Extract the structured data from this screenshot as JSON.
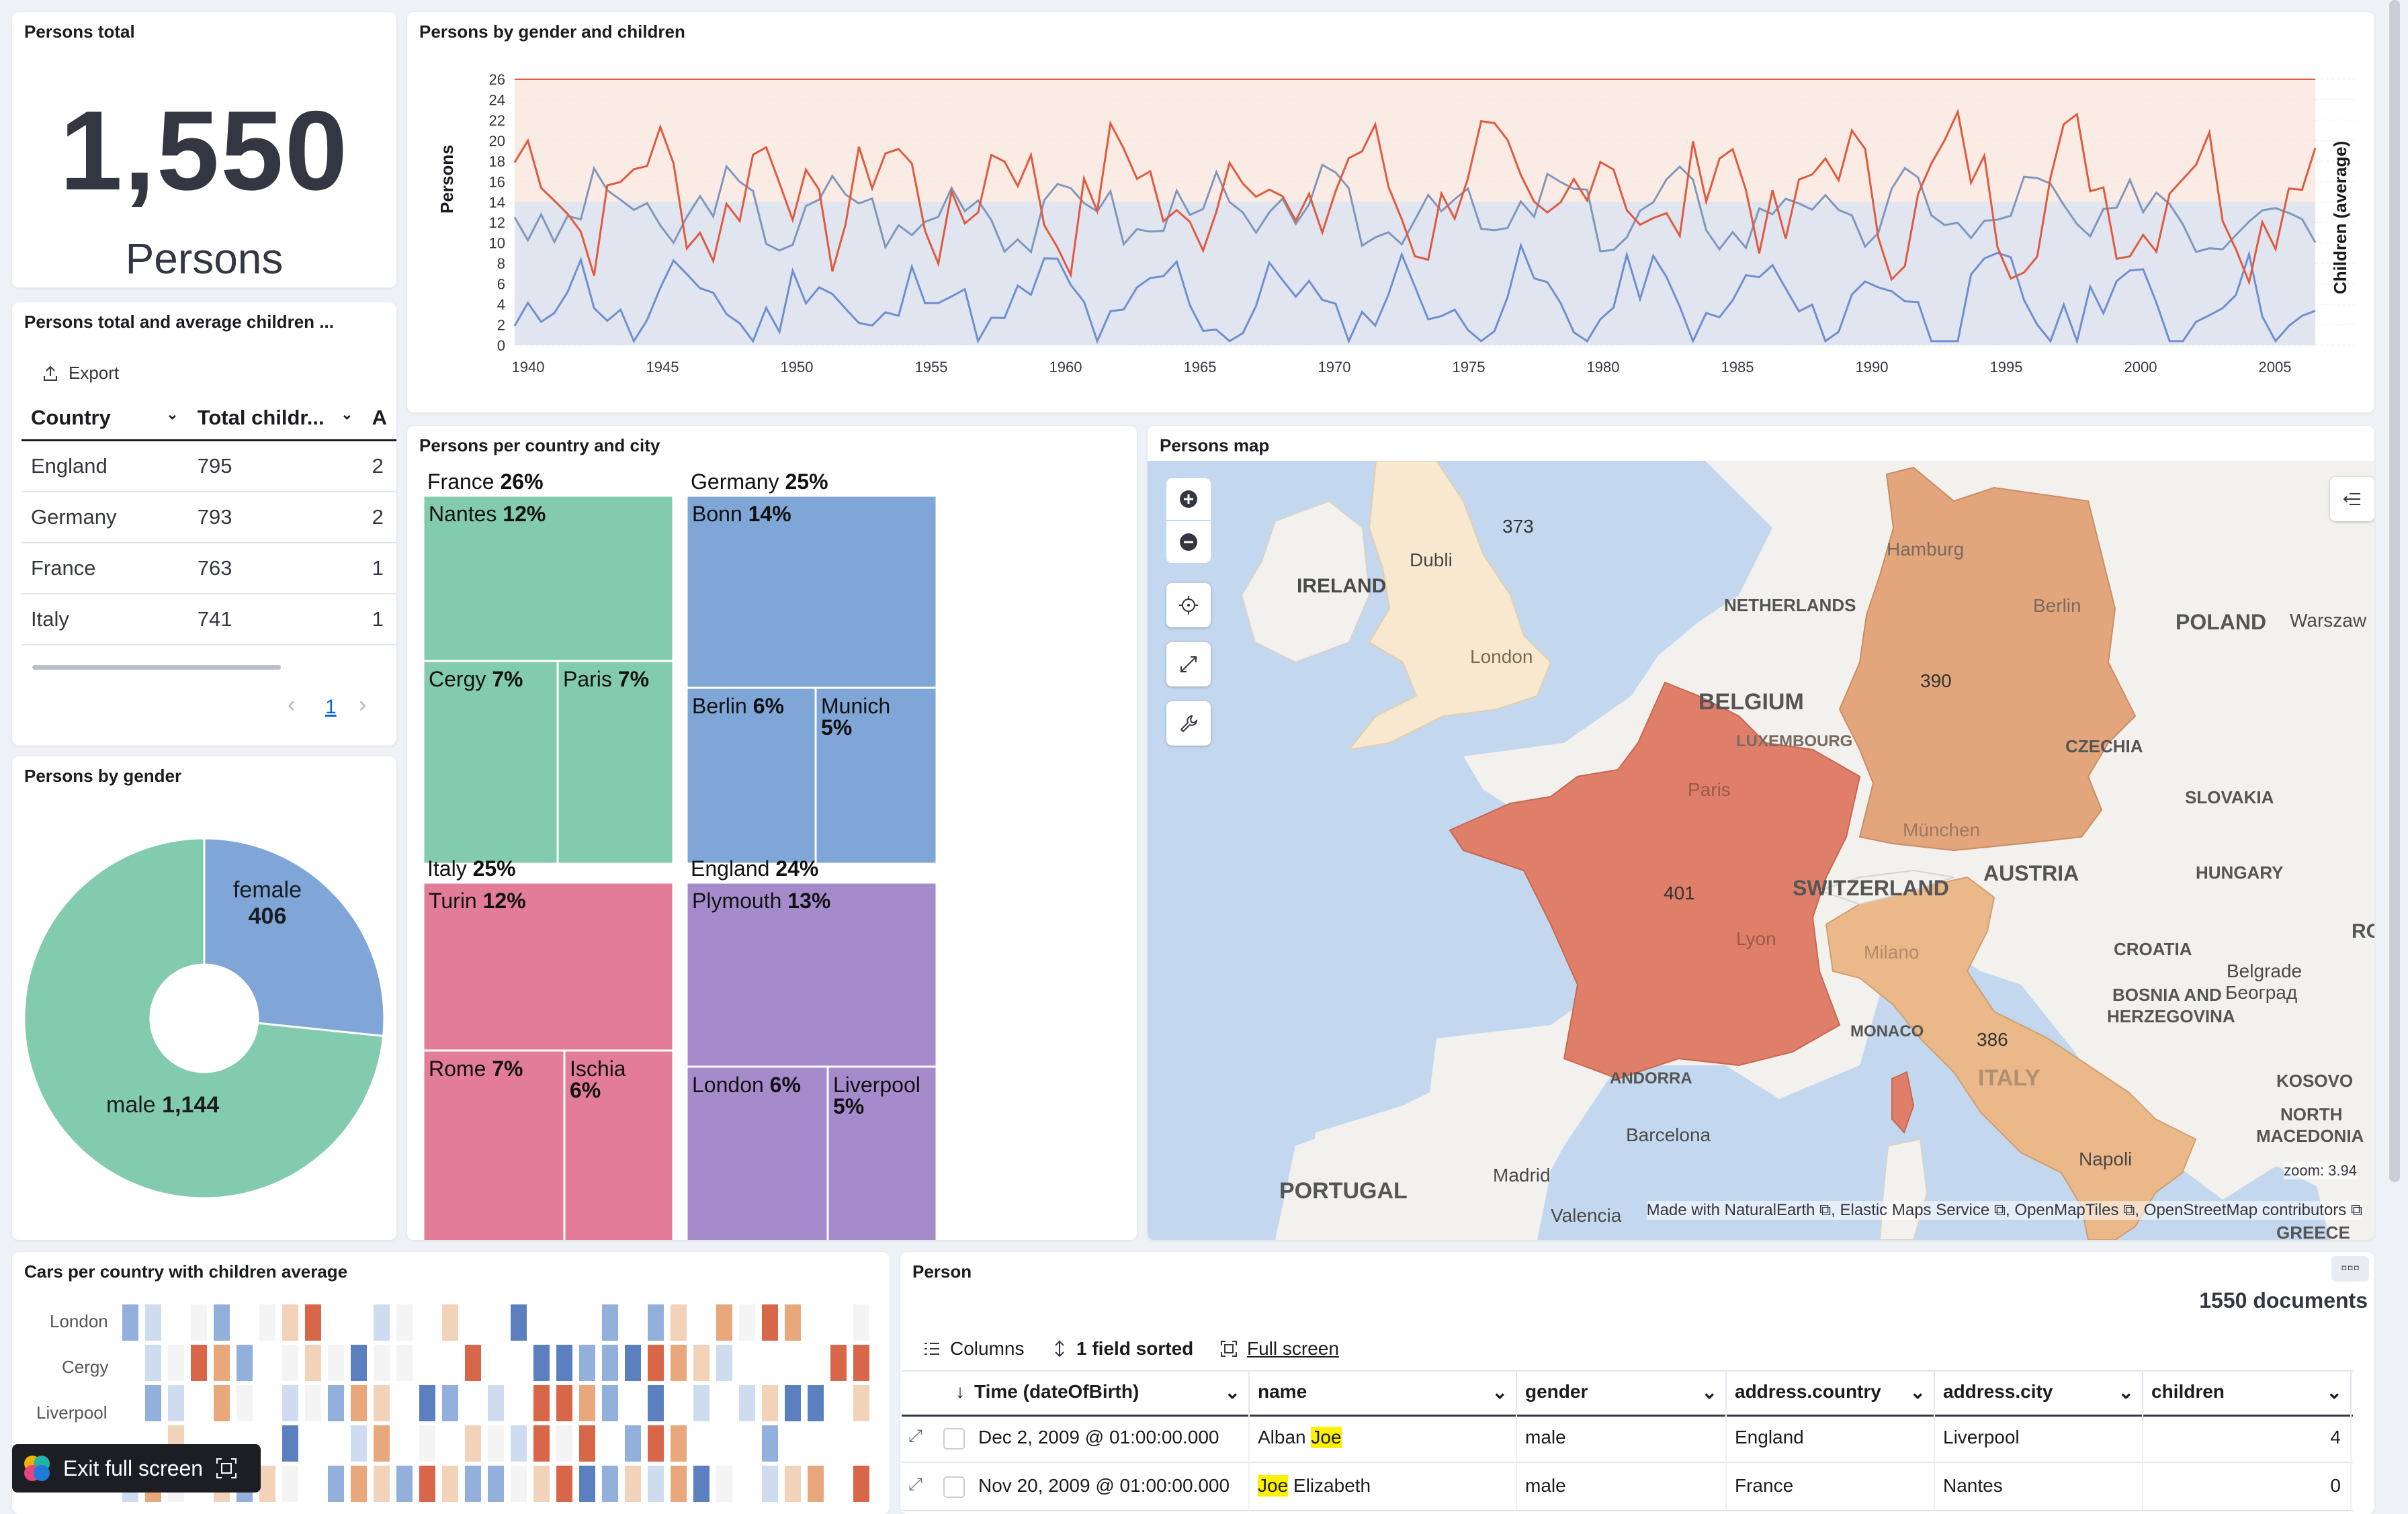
{
  "colors": {
    "female": "#6f8fd0",
    "male": "#e05a3e",
    "green": "#83cbae",
    "blue": "#7fa6d6",
    "pink": "#e27c97",
    "purple": "#a68bcc",
    "france_map": "#e07f69",
    "germany_map": "#e3a67c",
    "italy_map": "#ebb889",
    "england_map": "#f7e8cf",
    "water": "#c3d7ef",
    "accent": "#0b64dd"
  },
  "metric": {
    "title": "Persons total",
    "value": "1,550",
    "label": "Persons"
  },
  "table_panel": {
    "title": "Persons total and average children ...",
    "export_label": "Export",
    "columns": [
      "Country",
      "Total childr...",
      "A"
    ],
    "rows": [
      [
        "England",
        "795",
        "2"
      ],
      [
        "Germany",
        "793",
        "2"
      ],
      [
        "France",
        "763",
        "1"
      ],
      [
        "Italy",
        "741",
        "1"
      ]
    ],
    "page": "1"
  },
  "gender_pie": {
    "title": "Persons by gender",
    "labels": {
      "female_name": "female",
      "female_value": "406",
      "male_name": "male",
      "male_value": "1,144"
    }
  },
  "line_chart": {
    "title": "Persons by gender and children",
    "y_left_label": "Persons",
    "y_right_label": "Children (average)"
  },
  "treemap": {
    "title": "Persons per country and city",
    "groups": [
      {
        "name": "France",
        "pct": "26%",
        "color": "green",
        "cities": [
          {
            "name": "Nantes",
            "pct": "12%"
          },
          {
            "name": "Cergy",
            "pct": "7%"
          },
          {
            "name": "Paris",
            "pct": "7%"
          }
        ]
      },
      {
        "name": "Germany",
        "pct": "25%",
        "color": "blue",
        "cities": [
          {
            "name": "Bonn",
            "pct": "14%"
          },
          {
            "name": "Berlin",
            "pct": "6%"
          },
          {
            "name": "Munich",
            "pct": "5%"
          }
        ]
      },
      {
        "name": "Italy",
        "pct": "25%",
        "color": "pink",
        "cities": [
          {
            "name": "Turin",
            "pct": "12%"
          },
          {
            "name": "Rome",
            "pct": "7%"
          },
          {
            "name": "Ischia",
            "pct": "6%"
          }
        ]
      },
      {
        "name": "England",
        "pct": "24%",
        "color": "purple",
        "cities": [
          {
            "name": "Plymouth",
            "pct": "13%"
          },
          {
            "name": "London",
            "pct": "6%"
          },
          {
            "name": "Liverpool",
            "pct": "5%"
          }
        ]
      }
    ]
  },
  "map": {
    "title": "Persons map",
    "labels": {
      "ireland": "IRELAND",
      "dublin": "Dubli",
      "netherlands": "NETHERLANDS",
      "belgium": "BELGIUM",
      "luxembourg": "LUXEMBOURG",
      "berlin": "Berlin",
      "hamburg": "Hamburg",
      "poland": "POLAND",
      "warsaw": "Warszaw",
      "czechia": "CZECHIA",
      "slovakia": "SLOVAKIA",
      "hungary": "HUNGARY",
      "austria": "AUSTRIA",
      "switzerland": "SWITZERLAND",
      "muenchen": "München",
      "paris": "Paris",
      "lyon": "Lyon",
      "milano": "Milano",
      "italy": "ITALY",
      "croatia": "CROATIA",
      "bosnia1": "BOSNIA AND",
      "bosnia2": "HERZEGOVINA",
      "belgrade": "Belgrade",
      "beograd": "Београд",
      "kosovo": "KOSOVO",
      "nmac1": "NORTH",
      "nmac2": "MACEDONIA",
      "monaco": "MONACO",
      "andorra": "ANDORRA",
      "barcelona": "Barcelona",
      "madrid": "Madrid",
      "valencia": "Valencia",
      "napoli": "Napoli",
      "portugal": "PORTUGAL",
      "london": "London",
      "ro": "RO",
      "greece": "GREECE"
    },
    "counts": {
      "england": "373",
      "germany": "390",
      "france": "401",
      "italy": "386"
    },
    "zoom": "zoom: 3.94",
    "attribution": "Made with NaturalEarth ⧉, Elastic Maps Service ⧉, OpenMapTiles ⧉, OpenStreetMap contributors ⧉"
  },
  "heatmap": {
    "title": "Cars per country with children average",
    "rows": [
      "London",
      "Cergy",
      "Liverpool"
    ]
  },
  "person_panel": {
    "title": "Person",
    "doc_count": "1550 documents",
    "toolbar": {
      "columns": "Columns",
      "sorted": "1 field sorted",
      "fullscreen": "Full screen"
    },
    "columns": [
      "Time (dateOfBirth)",
      "name",
      "gender",
      "address.country",
      "address.city",
      "children"
    ],
    "rows": [
      {
        "time": "Dec 2, 2009 @ 01:00:00.000",
        "name_a": "Alban ",
        "name_b": "Joe",
        "name_c": "",
        "gender": "male",
        "country": "England",
        "city": "Liverpool",
        "children": "4"
      },
      {
        "time": "Nov 20, 2009 @ 01:00:00.000",
        "name_a": "",
        "name_b": "Joe",
        "name_c": " Elizabeth",
        "gender": "male",
        "country": "France",
        "city": "Nantes",
        "children": "0"
      }
    ]
  },
  "exit_fullscreen": "Exit full screen"
}
